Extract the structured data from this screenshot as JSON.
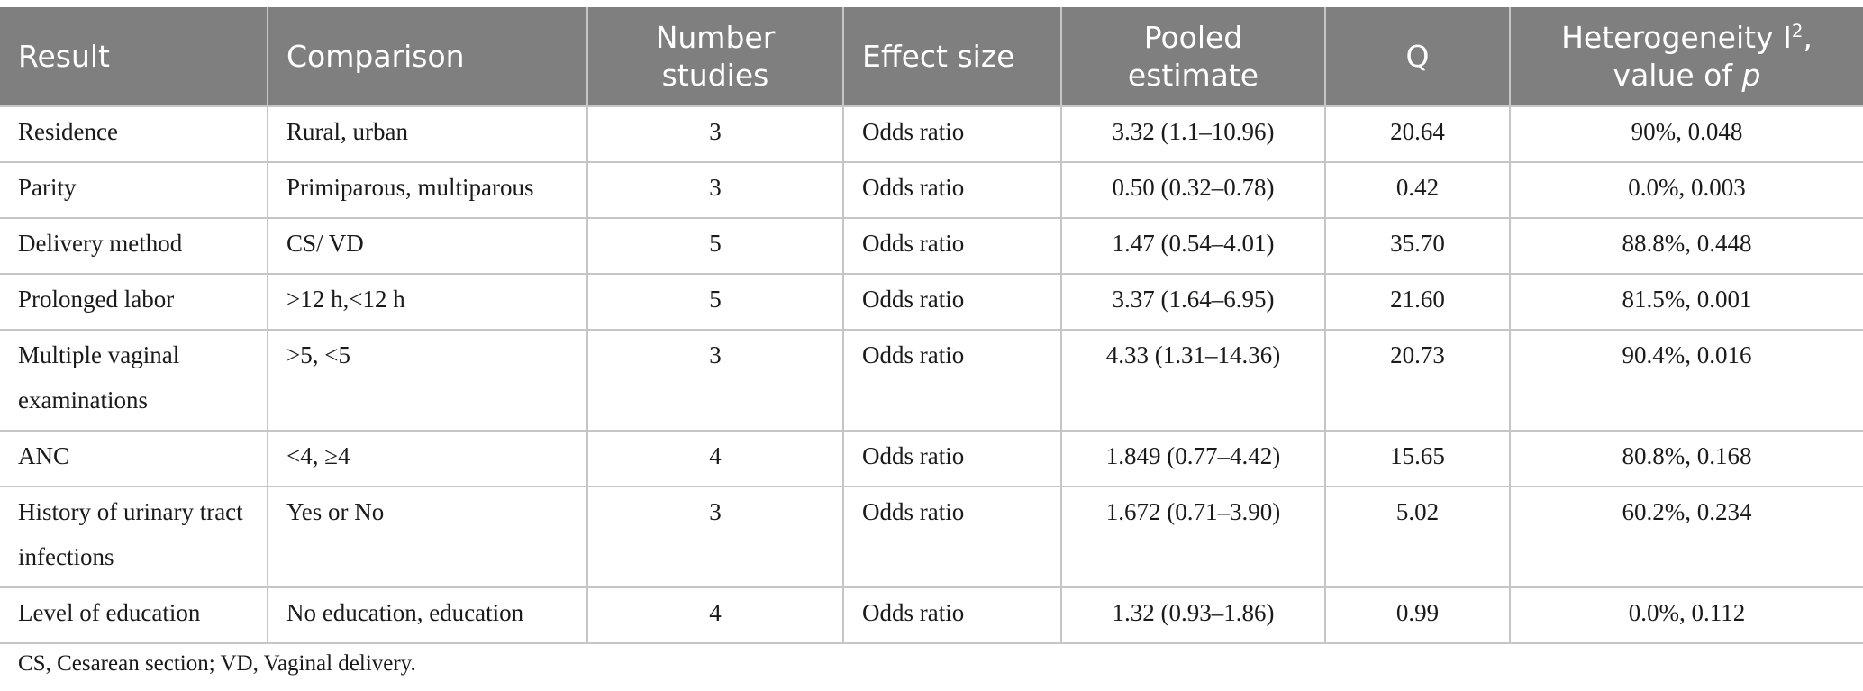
{
  "table": {
    "headers": {
      "result": "Result",
      "comparison": "Comparison",
      "number_studies": "Number studies",
      "effect_size": "Effect size",
      "pooled_estimate": "Pooled estimate",
      "q": "Q",
      "heterogeneity_prefix": "Heterogeneity I",
      "heterogeneity_superscript": "2",
      "heterogeneity_middle": ", value of ",
      "heterogeneity_italic": "p"
    },
    "rows": [
      {
        "result": "Residence",
        "comparison": "Rural, urban",
        "number_studies": "3",
        "effect_size": "Odds ratio",
        "pooled_estimate": "3.32 (1.1–10.96)",
        "q": "20.64",
        "heterogeneity": "90%, 0.048"
      },
      {
        "result": "Parity",
        "comparison": "Primiparous, multiparous",
        "number_studies": "3",
        "effect_size": "Odds ratio",
        "pooled_estimate": "0.50 (0.32–0.78)",
        "q": "0.42",
        "heterogeneity": "0.0%, 0.003"
      },
      {
        "result": "Delivery method",
        "comparison": "CS/ VD",
        "number_studies": "5",
        "effect_size": "Odds ratio",
        "pooled_estimate": "1.47 (0.54–4.01)",
        "q": "35.70",
        "heterogeneity": "88.8%, 0.448"
      },
      {
        "result": "Prolonged labor",
        "comparison": ">12 h,<12 h",
        "number_studies": "5",
        "effect_size": "Odds ratio",
        "pooled_estimate": "3.37 (1.64–6.95)",
        "q": "21.60",
        "heterogeneity": "81.5%, 0.001"
      },
      {
        "result": "Multiple vaginal examinations",
        "comparison": ">5, <5",
        "number_studies": "3",
        "effect_size": "Odds ratio",
        "pooled_estimate": "4.33 (1.31–14.36)",
        "q": "20.73",
        "heterogeneity": "90.4%, 0.016"
      },
      {
        "result": "ANC",
        "comparison": "<4, ≥4",
        "number_studies": "4",
        "effect_size": "Odds ratio",
        "pooled_estimate": "1.849 (0.77–4.42)",
        "q": "15.65",
        "heterogeneity": "80.8%, 0.168"
      },
      {
        "result": "History of urinary tract infections",
        "comparison": "Yes or No",
        "number_studies": "3",
        "effect_size": "Odds ratio",
        "pooled_estimate": "1.672 (0.71–3.90)",
        "q": "5.02",
        "heterogeneity": "60.2%, 0.234"
      },
      {
        "result": "Level of education",
        "comparison": "No education, education",
        "number_studies": "4",
        "effect_size": "Odds ratio",
        "pooled_estimate": "1.32 (0.93–1.86)",
        "q": "0.99",
        "heterogeneity": "0.0%, 0.112"
      }
    ]
  },
  "footnote": "CS, Cesarean section; VD, Vaginal delivery.",
  "colors": {
    "header_background": "#7f7f7f",
    "header_text": "#ffffff",
    "grid_lines": "#c6c6c6",
    "body_text": "#1a1a1a"
  }
}
